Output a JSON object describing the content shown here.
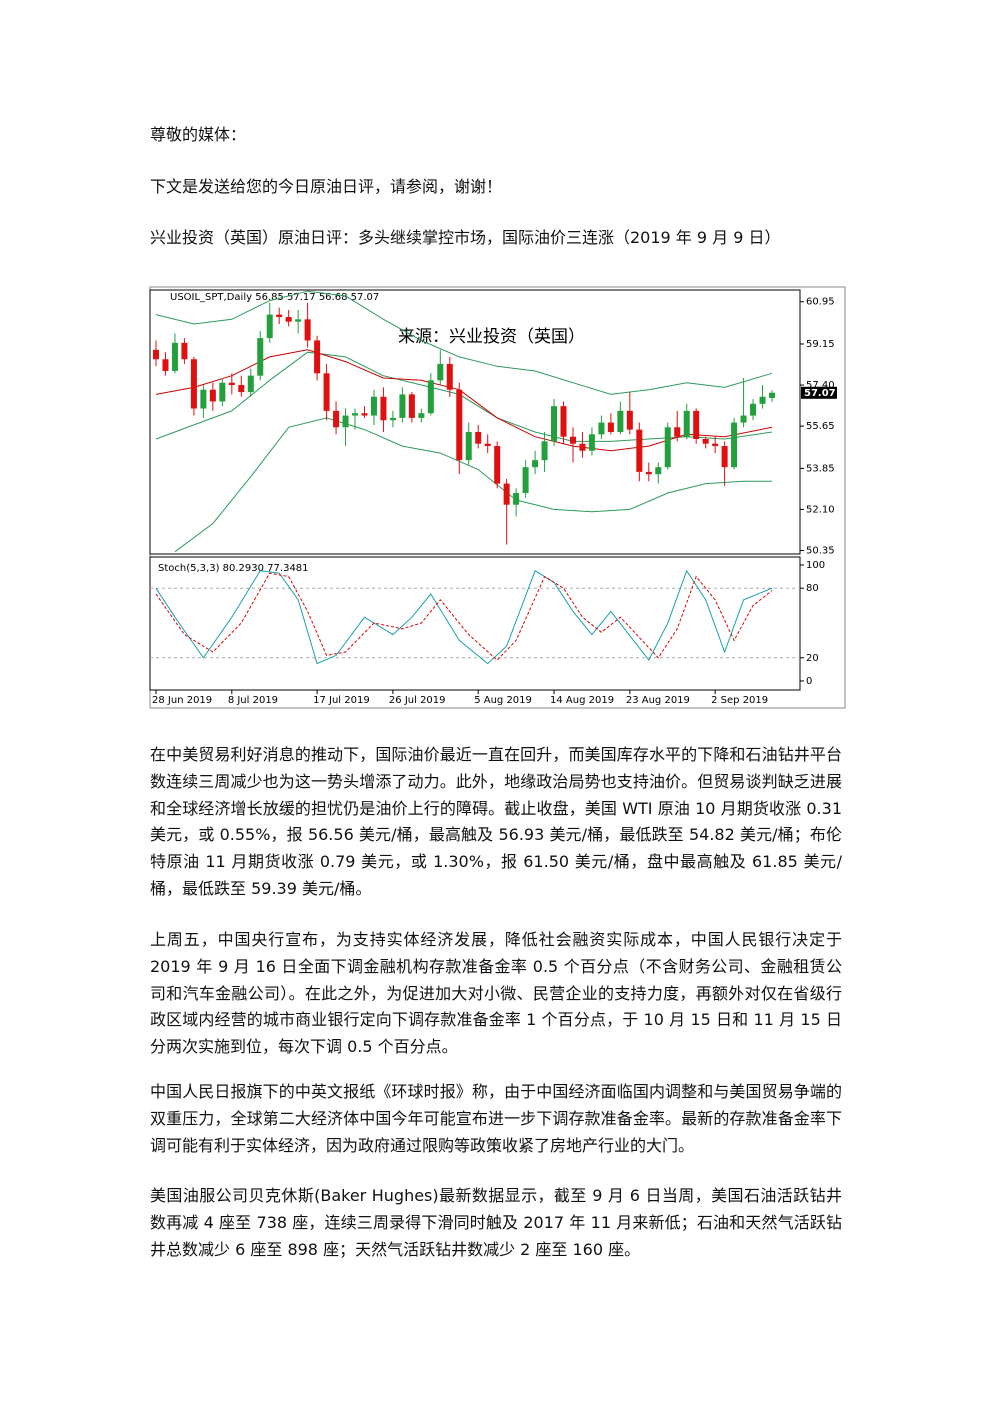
{
  "document": {
    "greeting": "尊敬的媒体：",
    "intro": "下文是发送给您的今日原油日评，请参阅，谢谢！",
    "heading": "兴业投资（英国）原油日评：多头继续掌控市场，国际油价三连涨（2019 年 9 月 9 日）",
    "paragraphs": [
      "在中美贸易利好消息的推动下，国际油价最近一直在回升，而美国库存水平的下降和石油钻井平台数连续三周减少也为这一势头增添了动力。此外，地缘政治局势也支持油价。但贸易谈判缺乏进展和全球经济增长放缓的担忧仍是油价上行的障碍。截止收盘，美国 WTI 原油 10 月期货收涨 0.31 美元，或 0.55%，报 56.56 美元/桶，最高触及 56.93 美元/桶，最低跌至 54.82 美元/桶；布伦特原油 11 月期货收涨 0.79 美元，或 1.30%，报 61.50 美元/桶，盘中最高触及 61.85 美元/桶，最低跌至 59.39 美元/桶。",
      "上周五，中国央行宣布，为支持实体经济发展，降低社会融资实际成本，中国人民银行决定于 2019 年 9 月 16 日全面下调金融机构存款准备金率 0.5 个百分点（不含财务公司、金融租赁公司和汽车金融公司）。在此之外，为促进加大对小微、民营企业的支持力度，再额外对仅在省级行政区域内经营的城市商业银行定向下调存款准备金率 1 个百分点，于 10 月 15 日和 11 月 15 日分两次实施到位，每次下调 0.5 个百分点。",
      "中国人民日报旗下的中英文报纸《环球时报》称，由于中国经济面临国内调整和与美国贸易争端的双重压力，全球第二大经济体中国今年可能宣布进一步下调存款准备金率。最新的存款准备金率下调可能有利于实体经济，因为政府通过限购等政策收紧了房地产行业的大门。",
      "美国油服公司贝克休斯(Baker Hughes)最新数据显示，截至 9 月 6 日当周，美国石油活跃钻井数再减 4 座至 738 座，连续三周录得下滑同时触及 2017 年 11 月来新低；石油和天然气活跃钻井总数减少 6 座至 898 座；天然气活跃钻井数减少 2 座至 160 座。"
    ]
  },
  "chart_data": [
    {
      "type": "candlestick",
      "title": "USOIL_SPT,Daily  56.85 57.17 56.68 57.07",
      "annotation": "来源：兴业投资（英国）",
      "x": [
        "28 Jun 2019",
        null,
        null,
        null,
        null,
        null,
        null,
        null,
        "8 Jul 2019",
        null,
        null,
        null,
        null,
        null,
        null,
        null,
        null,
        "17 Jul 2019",
        null,
        null,
        null,
        null,
        null,
        null,
        null,
        "26 Jul 2019",
        null,
        null,
        null,
        null,
        null,
        null,
        null,
        null,
        "5 Aug 2019",
        null,
        null,
        null,
        null,
        null,
        null,
        null,
        "14 Aug 2019",
        null,
        null,
        null,
        null,
        null,
        null,
        null,
        "23 Aug 2019",
        null,
        null,
        null,
        null,
        null,
        null,
        null,
        null,
        "2 Sep 2019",
        null,
        null,
        null,
        null,
        null,
        null
      ],
      "open": [
        58.9,
        58.5,
        58.0,
        59.2,
        58.5,
        56.4,
        57.2,
        56.7,
        57.5,
        57.4,
        57.1,
        57.8,
        59.4,
        60.4,
        60.3,
        60.1,
        60.2,
        59.3,
        57.9,
        56.3,
        55.6,
        56.1,
        56.2,
        56.1,
        56.9,
        55.9,
        56.0,
        57.0,
        56.0,
        56.2,
        57.6,
        58.3,
        57.2,
        54.2,
        55.4,
        54.9,
        54.8,
        53.2,
        52.3,
        52.8,
        53.9,
        54.2,
        55.0,
        56.5,
        55.2,
        54.9,
        54.6,
        55.3,
        55.8,
        55.4,
        56.3,
        55.5,
        53.7,
        53.6,
        53.9,
        55.6,
        55.2,
        56.3,
        55.1,
        54.9,
        54.8,
        53.9,
        55.8,
        56.1,
        56.6,
        56.85
      ],
      "high": [
        59.3,
        58.8,
        59.6,
        59.4,
        58.6,
        57.4,
        57.5,
        57.7,
        57.9,
        57.8,
        58.1,
        59.7,
        60.9,
        60.7,
        60.6,
        60.6,
        60.9,
        59.5,
        58.3,
        56.7,
        56.4,
        56.4,
        56.5,
        57.2,
        57.3,
        56.3,
        57.3,
        57.1,
        56.4,
        57.9,
        58.9,
        58.6,
        57.5,
        55.8,
        55.7,
        55.3,
        55.0,
        53.4,
        53.0,
        54.2,
        54.6,
        55.4,
        56.8,
        56.7,
        55.6,
        55.4,
        55.6,
        56.1,
        56.2,
        56.7,
        57.1,
        55.8,
        54.1,
        54.1,
        55.8,
        56.3,
        56.6,
        56.4,
        55.2,
        55.2,
        55.0,
        56.0,
        57.7,
        56.8,
        57.4,
        57.17
      ],
      "low": [
        58.2,
        57.8,
        57.9,
        58.3,
        56.1,
        56.0,
        56.3,
        56.5,
        57.0,
        56.9,
        56.9,
        57.6,
        59.2,
        60.0,
        59.9,
        59.6,
        59.0,
        57.6,
        55.9,
        55.3,
        54.8,
        55.5,
        56.0,
        55.7,
        55.4,
        55.6,
        55.8,
        55.8,
        55.8,
        56.1,
        57.4,
        56.9,
        53.6,
        54.0,
        54.7,
        54.5,
        53.0,
        50.6,
        51.8,
        52.6,
        53.6,
        53.7,
        54.8,
        54.9,
        54.1,
        54.3,
        54.4,
        55.1,
        55.3,
        55.3,
        55.3,
        53.3,
        53.3,
        53.2,
        53.8,
        55.0,
        55.1,
        54.9,
        54.7,
        54.5,
        53.1,
        53.8,
        55.6,
        55.9,
        56.4,
        56.68
      ],
      "close": [
        58.5,
        58.0,
        59.2,
        58.5,
        56.4,
        57.2,
        56.7,
        57.5,
        57.4,
        57.1,
        57.8,
        59.4,
        60.4,
        60.3,
        60.1,
        60.2,
        59.3,
        57.9,
        56.3,
        55.6,
        56.1,
        56.2,
        56.1,
        56.9,
        55.9,
        56.0,
        57.0,
        56.0,
        56.2,
        57.6,
        58.3,
        57.2,
        54.2,
        55.4,
        54.9,
        54.8,
        53.2,
        52.3,
        52.8,
        53.9,
        54.2,
        55.0,
        56.5,
        55.2,
        54.9,
        54.6,
        55.3,
        55.8,
        55.4,
        56.3,
        55.5,
        53.7,
        53.6,
        53.9,
        55.6,
        55.2,
        56.3,
        55.1,
        54.9,
        54.8,
        53.9,
        55.8,
        56.1,
        56.6,
        56.9,
        57.07
      ],
      "up_color": "#22a03c",
      "down_color": "#e01010",
      "lines": [
        {
          "color": "#2e9a5e",
          "x": [
            0,
            4,
            8,
            12,
            16,
            20,
            24,
            28,
            32,
            36,
            40,
            44,
            48,
            52,
            56,
            60,
            65
          ],
          "values": [
            60.4,
            60.0,
            60.2,
            61.0,
            61.4,
            61.2,
            60.2,
            59.3,
            58.6,
            58.2,
            58.0,
            57.5,
            57.0,
            57.2,
            57.5,
            57.3,
            57.9
          ]
        },
        {
          "color": "#2e9a5e",
          "x": [
            0,
            4,
            8,
            12,
            16,
            20,
            24,
            28,
            32,
            36,
            40,
            44,
            48,
            52,
            56,
            60,
            65
          ],
          "values": [
            55.1,
            55.7,
            56.3,
            57.6,
            58.8,
            58.6,
            57.8,
            57.4,
            57.0,
            56.0,
            55.4,
            55.0,
            55.0,
            55.1,
            55.2,
            55.1,
            55.4
          ]
        },
        {
          "color": "#2e9a5e",
          "x": [
            2,
            6,
            10,
            14,
            18,
            22,
            26,
            30,
            34,
            38,
            42,
            46,
            50,
            54,
            58,
            62,
            65
          ],
          "values": [
            50.3,
            51.5,
            53.5,
            55.6,
            56.0,
            55.5,
            54.8,
            54.5,
            53.8,
            52.5,
            52.1,
            52.0,
            52.1,
            52.8,
            53.2,
            53.3,
            53.3
          ]
        },
        {
          "color": "#cc0000",
          "x": [
            0,
            4,
            8,
            12,
            16,
            20,
            24,
            28,
            32,
            36,
            40,
            44,
            48,
            52,
            56,
            60,
            65
          ],
          "values": [
            57.0,
            57.3,
            57.8,
            58.6,
            58.9,
            58.4,
            57.7,
            57.6,
            57.2,
            56.0,
            55.2,
            54.8,
            54.6,
            54.8,
            55.3,
            55.2,
            55.6
          ]
        }
      ],
      "last_price": 57.07,
      "ylim": [
        50.2,
        61.45
      ],
      "yticks": [
        60.95,
        59.15,
        {
          "value": 57.4,
          "label": "57.40"
        },
        55.65,
        53.85,
        {
          "value": 52.1,
          "label": "52.10"
        },
        50.35
      ]
    },
    {
      "type": "line",
      "title": "Stoch(5,3,3) 80.2930 77.3481",
      "series": [
        {
          "color": "#1aa0b0",
          "x": [
            0,
            2,
            5,
            8,
            11,
            13,
            15,
            17,
            19,
            22,
            25,
            27,
            29,
            32,
            35,
            37,
            40,
            42,
            44,
            46,
            48,
            52,
            54,
            56,
            58,
            60,
            62,
            65
          ],
          "values": [
            80,
            55,
            20,
            55,
            95,
            93,
            70,
            15,
            22,
            55,
            40,
            55,
            75,
            35,
            15,
            30,
            95,
            85,
            60,
            40,
            60,
            18,
            50,
            95,
            70,
            25,
            70,
            80
          ]
        },
        {
          "color": "#dd0000",
          "dashed": true,
          "x": [
            0,
            3,
            6,
            9,
            12,
            14,
            16,
            18,
            20,
            23,
            26,
            28,
            30,
            33,
            36,
            38,
            41,
            43,
            45,
            47,
            49,
            53,
            55,
            57,
            59,
            61,
            63,
            65
          ],
          "values": [
            75,
            40,
            25,
            50,
            93,
            90,
            60,
            22,
            25,
            50,
            45,
            50,
            70,
            40,
            18,
            35,
            90,
            80,
            55,
            42,
            55,
            20,
            45,
            90,
            70,
            35,
            65,
            78
          ]
        }
      ],
      "levels": [
        80,
        20
      ],
      "ylim": [
        -7.8,
        106.9
      ],
      "yticks": [
        100,
        80,
        20,
        0
      ]
    }
  ]
}
